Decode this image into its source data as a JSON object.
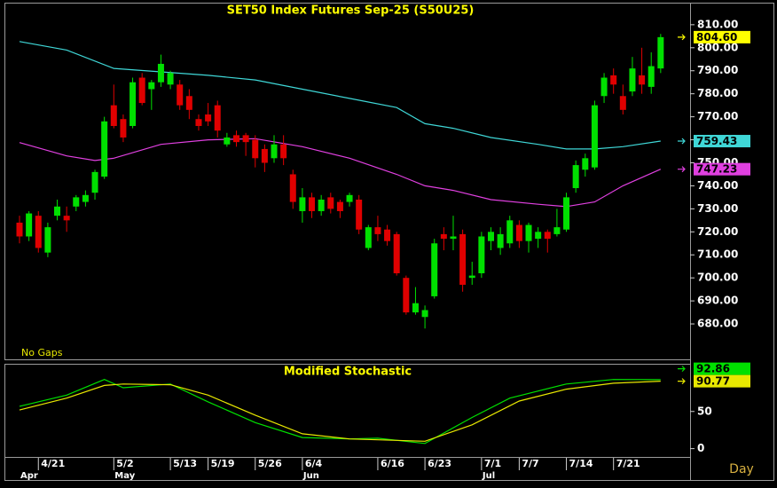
{
  "chart_data": [
    {
      "type": "candlestick",
      "title": "SET50 Index Futures Sep-25 (S50U25)",
      "note": "No Gaps",
      "x_label": "Day",
      "categories": [
        null,
        null,
        "4/21",
        null,
        null,
        null,
        null,
        null,
        null,
        null,
        "5/2",
        null,
        null,
        null,
        null,
        null,
        "5/13",
        null,
        null,
        null,
        "5/19",
        null,
        null,
        null,
        null,
        "5/26",
        null,
        null,
        null,
        null,
        "6/4",
        null,
        null,
        null,
        null,
        null,
        null,
        null,
        "6/16",
        null,
        null,
        null,
        null,
        "6/23",
        null,
        null,
        null,
        null,
        null,
        "7/1",
        null,
        null,
        null,
        "7/7",
        null,
        null,
        null,
        null,
        "7/14",
        null,
        null,
        null,
        null,
        "7/21",
        null,
        null,
        null,
        null,
        null
      ],
      "months": [
        "Apr",
        null,
        null,
        null,
        null,
        null,
        null,
        null,
        null,
        null,
        "May",
        null,
        null,
        null,
        null,
        null,
        null,
        null,
        null,
        null,
        null,
        null,
        null,
        null,
        null,
        null,
        null,
        null,
        null,
        null,
        "Jun",
        null,
        null,
        null,
        null,
        null,
        null,
        null,
        null,
        null,
        null,
        null,
        null,
        null,
        null,
        null,
        null,
        null,
        null,
        "Jul",
        null,
        null,
        null,
        null,
        null,
        null,
        null,
        null,
        null,
        null,
        null,
        null,
        null,
        null,
        null,
        null,
        null,
        null,
        null
      ],
      "open": [
        724,
        718,
        727,
        711,
        727,
        727,
        731,
        733,
        737,
        744,
        775,
        769,
        766,
        787,
        782,
        785,
        784,
        784,
        779,
        769,
        771,
        775,
        758,
        762,
        762,
        760,
        756,
        752,
        758,
        745,
        729,
        735,
        729,
        735,
        733,
        733,
        734,
        713,
        722,
        721,
        719,
        700,
        685,
        683,
        692,
        719,
        717,
        719,
        700,
        702,
        716,
        713,
        715,
        723,
        716,
        717,
        720,
        719,
        721,
        739,
        747,
        748,
        779,
        788,
        779,
        781,
        788,
        783,
        791
      ],
      "high": [
        727,
        729,
        729,
        724,
        734,
        731,
        736,
        738,
        747,
        770,
        784,
        771,
        787,
        789,
        786,
        797,
        790,
        786,
        782,
        771,
        776,
        777,
        763,
        764,
        763,
        762,
        758,
        762,
        762,
        747,
        739,
        737,
        736,
        737,
        734,
        737,
        736,
        723,
        727,
        723,
        720,
        701,
        696,
        688,
        717,
        722,
        727,
        721,
        707,
        720,
        722,
        722,
        727,
        725,
        724,
        722,
        721,
        730,
        737,
        751,
        754,
        777,
        789,
        791,
        784,
        796,
        800,
        798,
        806
      ],
      "low": [
        715,
        716,
        711,
        709,
        725,
        720,
        729,
        731,
        734,
        743,
        765,
        759,
        765,
        775,
        773,
        783,
        782,
        773,
        769,
        764,
        766,
        761,
        757,
        757,
        753,
        748,
        746,
        750,
        749,
        730,
        724,
        726,
        727,
        728,
        726,
        731,
        719,
        712,
        716,
        714,
        701,
        684,
        684,
        678,
        691,
        712,
        712,
        694,
        697,
        700,
        712,
        710,
        713,
        713,
        711,
        713,
        711,
        718,
        720,
        737,
        744,
        747,
        776,
        780,
        771,
        779,
        780,
        780,
        789
      ],
      "close": [
        718,
        728,
        713,
        722,
        731,
        725,
        735,
        736,
        746,
        768,
        766,
        761,
        785,
        776,
        785,
        793,
        789,
        775,
        773,
        766,
        768,
        764,
        761,
        759,
        759,
        752,
        750,
        758,
        752,
        733,
        735,
        729,
        734,
        730,
        729,
        736,
        721,
        722,
        719,
        716,
        702,
        685,
        689,
        686,
        715,
        717,
        718,
        697,
        701,
        718,
        720,
        719,
        725,
        716,
        723,
        720,
        717,
        722,
        735,
        749,
        752,
        775,
        787,
        784,
        773,
        791,
        784,
        792,
        804.6
      ],
      "close_labels": [
        null,
        null,
        null,
        null,
        null,
        null,
        null,
        null,
        null,
        null,
        null,
        null,
        null,
        null,
        null,
        null,
        null,
        null,
        null,
        null,
        null,
        null,
        null,
        null,
        null,
        null,
        null,
        null,
        null,
        null,
        null,
        null,
        null,
        null,
        null,
        null,
        null,
        null,
        null,
        null,
        null,
        null,
        null,
        null,
        null,
        null,
        null,
        null,
        null,
        null,
        null,
        null,
        null,
        null,
        null,
        null,
        null,
        null,
        null,
        null,
        null,
        null,
        null,
        null,
        null,
        null,
        null,
        null,
        "804.60"
      ],
      "up_color": "#00e000",
      "down_color": "#e00000",
      "label_color": "#ffff00",
      "series": [
        {
          "color": "#3fd7d7",
          "x": [
            0,
            5,
            10,
            15,
            20,
            25,
            30,
            35,
            40,
            43,
            46,
            50,
            55,
            58,
            61,
            64,
            68
          ],
          "values": [
            802.7,
            799,
            791,
            789.5,
            788,
            786,
            782,
            778,
            774,
            767,
            765,
            761,
            758,
            756,
            756,
            757,
            759.43
          ],
          "value_labels": [
            null,
            null,
            null,
            null,
            null,
            null,
            null,
            null,
            null,
            null,
            null,
            null,
            null,
            null,
            null,
            null,
            "759.43"
          ]
        },
        {
          "color": "#e040e0",
          "x": [
            0,
            5,
            8,
            10,
            15,
            20,
            25,
            30,
            35,
            40,
            43,
            46,
            50,
            55,
            58,
            61,
            64,
            68
          ],
          "values": [
            758.8,
            753,
            751,
            752,
            758,
            760,
            760.5,
            757,
            752,
            745,
            740,
            738,
            734,
            732,
            731,
            733,
            740,
            747.23
          ],
          "value_labels": [
            null,
            null,
            null,
            null,
            null,
            null,
            null,
            null,
            null,
            null,
            null,
            null,
            null,
            null,
            null,
            null,
            null,
            "747.23"
          ]
        }
      ],
      "ylim": [
        664.6,
        819.2
      ],
      "yticks": [
        {
          "value": 680,
          "label": "680.00"
        },
        {
          "value": 690,
          "label": "690.00"
        },
        {
          "value": 700,
          "label": "700.00"
        },
        {
          "value": 710,
          "label": "710.00"
        },
        {
          "value": 720,
          "label": "720.00"
        },
        {
          "value": 730,
          "label": "730.00"
        },
        {
          "value": 740,
          "label": "740.00"
        },
        {
          "value": 750,
          "label": "750.00"
        },
        {
          "value": 760,
          "label": "760.00"
        },
        {
          "value": 770,
          "label": "770.00"
        },
        {
          "value": 780,
          "label": "780.00"
        },
        {
          "value": 790,
          "label": "790.00"
        },
        {
          "value": 800,
          "label": "800.00"
        },
        {
          "value": 810,
          "label": "810.00"
        }
      ]
    },
    {
      "type": "line",
      "title": "Modified Stochastic",
      "series": [
        {
          "color": "#00e000",
          "x": [
            0,
            5,
            9,
            11,
            16,
            20,
            25,
            30,
            35,
            38,
            43,
            48,
            52,
            58,
            63,
            68
          ],
          "values": [
            57,
            72,
            93,
            82,
            87,
            63,
            35,
            15,
            13,
            14,
            7,
            42,
            68,
            87,
            93,
            92.86
          ],
          "value_labels": [
            null,
            null,
            null,
            null,
            null,
            null,
            null,
            null,
            null,
            null,
            null,
            null,
            null,
            null,
            null,
            "92.86"
          ]
        },
        {
          "color": "#e8e800",
          "x": [
            0,
            5,
            9,
            11,
            16,
            20,
            25,
            30,
            35,
            43,
            48,
            53,
            58,
            63,
            68
          ],
          "values": [
            52,
            68,
            85,
            87,
            86,
            72,
            45,
            20,
            13,
            10,
            32,
            64,
            80,
            88,
            90.77
          ],
          "value_labels": [
            null,
            null,
            null,
            null,
            null,
            null,
            null,
            null,
            null,
            null,
            null,
            null,
            null,
            null,
            "90.77"
          ]
        }
      ],
      "ylim": [
        -10,
        113
      ],
      "yticks": [
        0,
        50
      ]
    }
  ]
}
